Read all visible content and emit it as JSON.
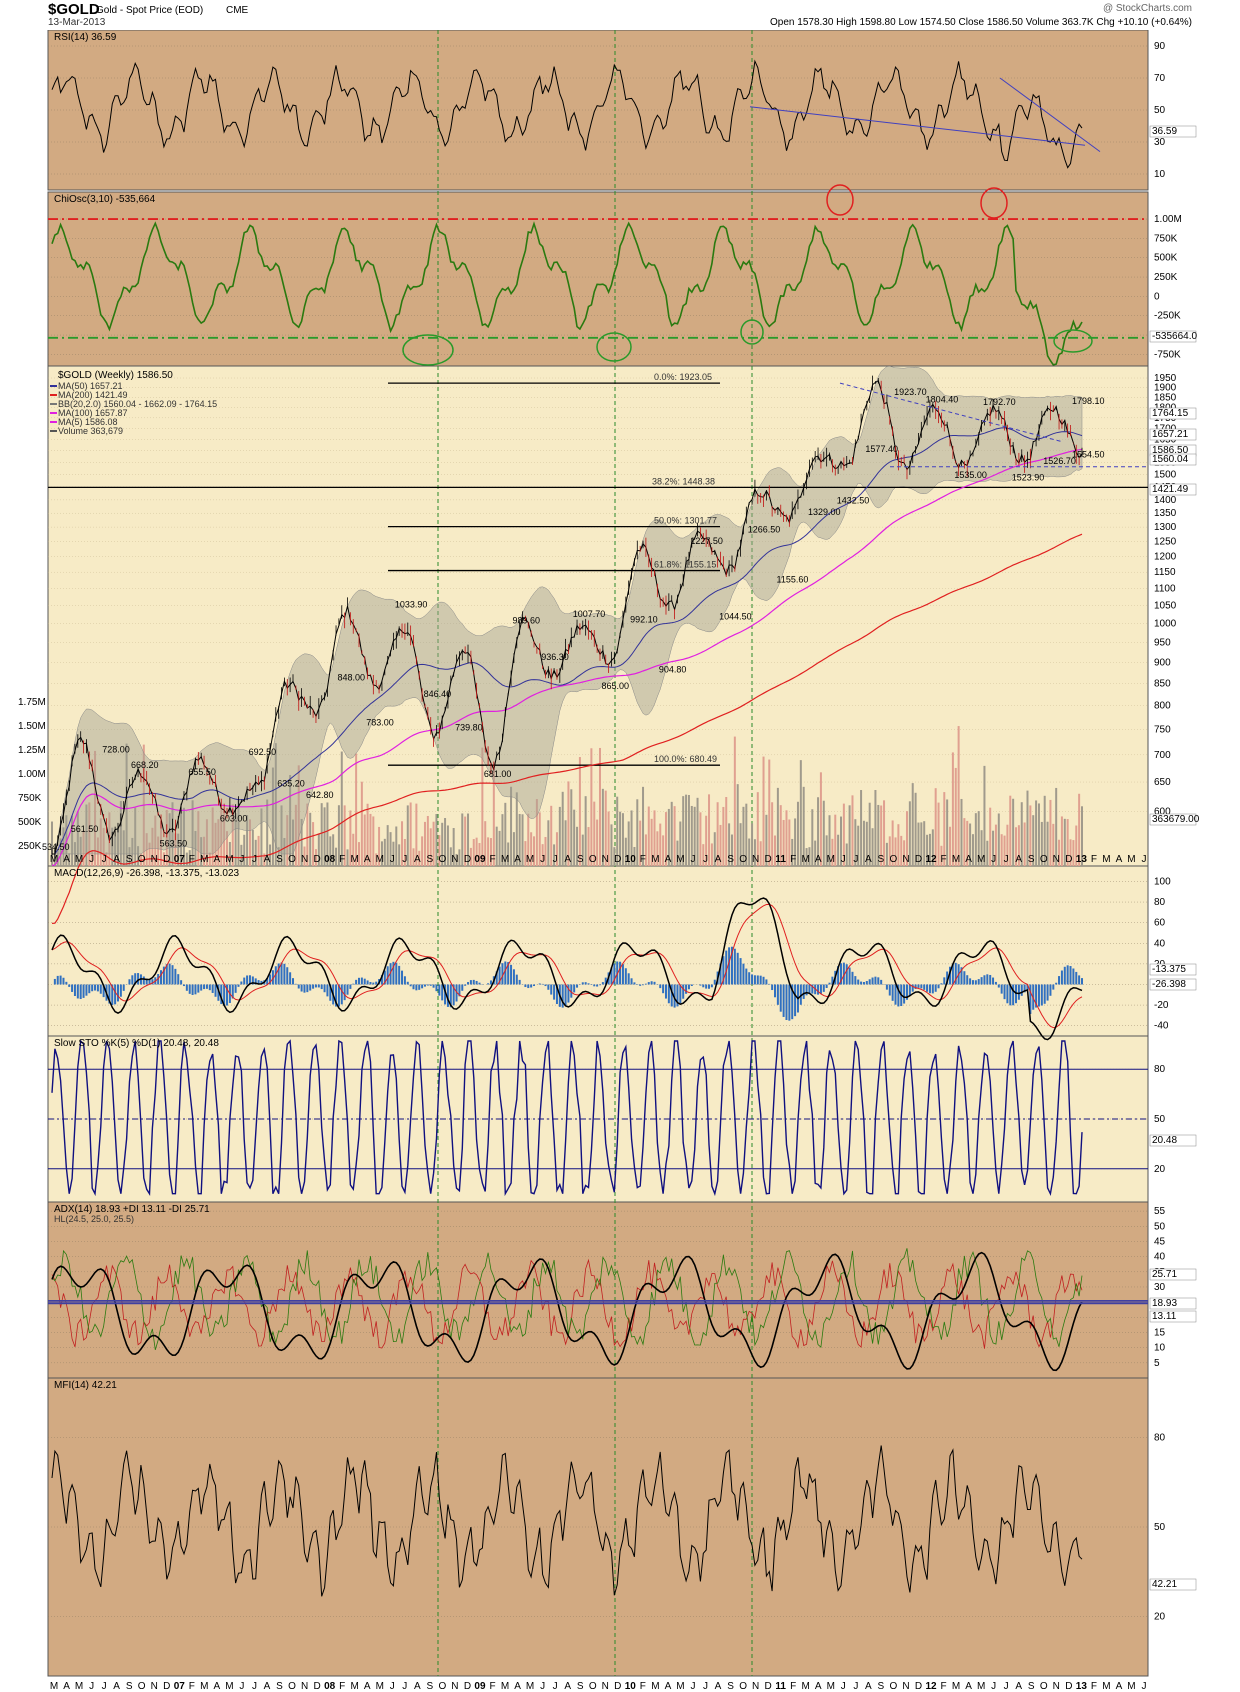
{
  "header": {
    "symbol": "$GOLD",
    "name": "Gold - Spot Price (EOD)",
    "exchange": "CME",
    "date": "13-Mar-2013",
    "watermark": "@ StockCharts.com",
    "quote": "Open 1578.30   High 1598.80   Low 1574.50   Close 1586.50   Volume 363.7K   Chg +10.10 (+0.64%)"
  },
  "colors": {
    "panel_bg": "#d2aa82",
    "main_bg": "#f7ebc6",
    "price": "#000000",
    "ma50": "#333399",
    "ma200": "#e02020",
    "ma100": "#e020e0",
    "band_fill": "#a0a090",
    "volume_up": "#a09a8c",
    "volume_down": "#e0a090",
    "rsi": "#000000",
    "chiosc": "#2a7a10",
    "macd": "#000000",
    "macd_signal": "#e02020",
    "macd_hist": "#3070c0",
    "sto": "#101080",
    "adx": "#000000",
    "pdi": "#2a7a10",
    "mdi": "#c02020",
    "mfi": "#000000",
    "trendline": "#4040c0",
    "vline": "#2a8a2a",
    "circle_red": "#e02020",
    "circle_green": "#2a9a2a"
  },
  "panels": {
    "rsi": {
      "label": "RSI(14) 36.59",
      "last": "36.59",
      "ticks": [
        "90",
        "70",
        "50",
        "30",
        "10"
      ]
    },
    "chiosc": {
      "label": "ChiOsc(3,10) -535,664",
      "last": "-535664.0",
      "ticks": [
        "1.00M",
        "750K",
        "500K",
        "250K",
        "0",
        "-250K",
        "-500K",
        "-750K"
      ]
    },
    "price": {
      "title": "$GOLD (Weekly) 1586.50",
      "legend": [
        "MA(50) 1657.21",
        "MA(200) 1421.49",
        "BB(20,2.0) 1560.04 - 1662.09 - 1764.15",
        "MA(100) 1657.87",
        "MA(5) 1586.08",
        "Volume 363,679"
      ],
      "last_labels": [
        "1764.15",
        "1657.21",
        "1586.50",
        "1560.04",
        "1421.49",
        "363679.00"
      ],
      "ticks": [
        "1950",
        "1900",
        "1850",
        "1800",
        "1750",
        "1700",
        "1650",
        "1600",
        "1550",
        "1500",
        "1450",
        "1400",
        "1350",
        "1300",
        "1250",
        "1200",
        "1150",
        "1100",
        "1050",
        "1000",
        "950",
        "900",
        "850",
        "800",
        "750",
        "700",
        "650",
        "600"
      ],
      "vol_ticks": [
        "1.75M",
        "1.50M",
        "1.25M",
        "1.00M",
        "750K",
        "500K",
        "250K"
      ],
      "fib": [
        "0.0%: 1923.05",
        "38.2%: 1448.38",
        "50.0%: 1301.77",
        "61.8%: 1155.15",
        "100.0%: 680.49"
      ],
      "annotations": [
        "534.50",
        "561.50",
        "728.00",
        "668.20",
        "563.50",
        "655.50",
        "603.00",
        "692.50",
        "635.20",
        "642.80",
        "848.00",
        "783.00",
        "1033.90",
        "846.40",
        "739.80",
        "681.00",
        "989.60",
        "936.30",
        "1007.70",
        "865.00",
        "992.10",
        "904.80",
        "1227.50",
        "1044.50",
        "1266.50",
        "1155.60",
        "1329.00",
        "1432.50",
        "1577.40",
        "1923.70",
        "1804.40",
        "1535.00",
        "1792.70",
        "1523.90",
        "1526.70",
        "1798.10",
        "1554.50"
      ]
    },
    "macd": {
      "label": "MACD(12,26,9) -26.398, -13.375, -13.023",
      "last": [
        "-13.375",
        "-26.398"
      ],
      "ticks": [
        "100",
        "80",
        "60",
        "40",
        "20",
        "0",
        "-20",
        "-40"
      ]
    },
    "sto": {
      "label": "Slow STO %K(5) %D(1) 20.48, 20.48",
      "last": "20.48",
      "ticks": [
        "80",
        "50",
        "20"
      ]
    },
    "adx": {
      "label": "ADX(14) 18.93  +DI 13.11  -DI 25.71",
      "label2": "HL(24.5, 25.0, 25.5)",
      "last": [
        "25.71",
        "18.93",
        "13.11"
      ],
      "ticks": [
        "55",
        "50",
        "45",
        "40",
        "35",
        "30",
        "25",
        "20",
        "15",
        "10",
        "5"
      ]
    },
    "mfi": {
      "label": "MFI(14) 42.21",
      "last": "42.21",
      "ticks": [
        "80",
        "50",
        "20"
      ]
    }
  },
  "xaxis": [
    "M",
    "A",
    "M",
    "J",
    "J",
    "A",
    "S",
    "O",
    "N",
    "D",
    "07",
    "F",
    "M",
    "A",
    "M",
    "J",
    "J",
    "A",
    "S",
    "O",
    "N",
    "D",
    "08",
    "F",
    "M",
    "A",
    "M",
    "J",
    "J",
    "A",
    "S",
    "O",
    "N",
    "D",
    "09",
    "F",
    "M",
    "A",
    "M",
    "J",
    "J",
    "A",
    "S",
    "O",
    "N",
    "D",
    "10",
    "F",
    "M",
    "A",
    "M",
    "J",
    "J",
    "A",
    "S",
    "O",
    "N",
    "D",
    "11",
    "F",
    "M",
    "A",
    "M",
    "J",
    "J",
    "A",
    "S",
    "O",
    "N",
    "D",
    "12",
    "F",
    "M",
    "A",
    "M",
    "J",
    "J",
    "A",
    "S",
    "O",
    "N",
    "D",
    "13",
    "F",
    "M",
    "A",
    "M",
    "J"
  ],
  "chart_data": {
    "type": "line",
    "title": "$GOLD (Weekly) 1586.50",
    "series": [
      {
        "name": "$GOLD",
        "pivots": [
          534.5,
          728.0,
          561.5,
          668.2,
          563.5,
          692.5,
          603.0,
          642.8,
          848.0,
          783.0,
          1033.9,
          846.4,
          989.6,
          739.8,
          936.3,
          681.0,
          1007.7,
          865.0,
          992.1,
          904.8,
          1227.5,
          1044.5,
          1266.5,
          1155.6,
          1432.5,
          1329.0,
          1577.4,
          1535.0,
          1923.7,
          1523.9,
          1804.4,
          1526.7,
          1792.7,
          1554.5,
          1798.1,
          1586.5
        ]
      }
    ],
    "ylim": [
      534.5,
      1950
    ]
  }
}
